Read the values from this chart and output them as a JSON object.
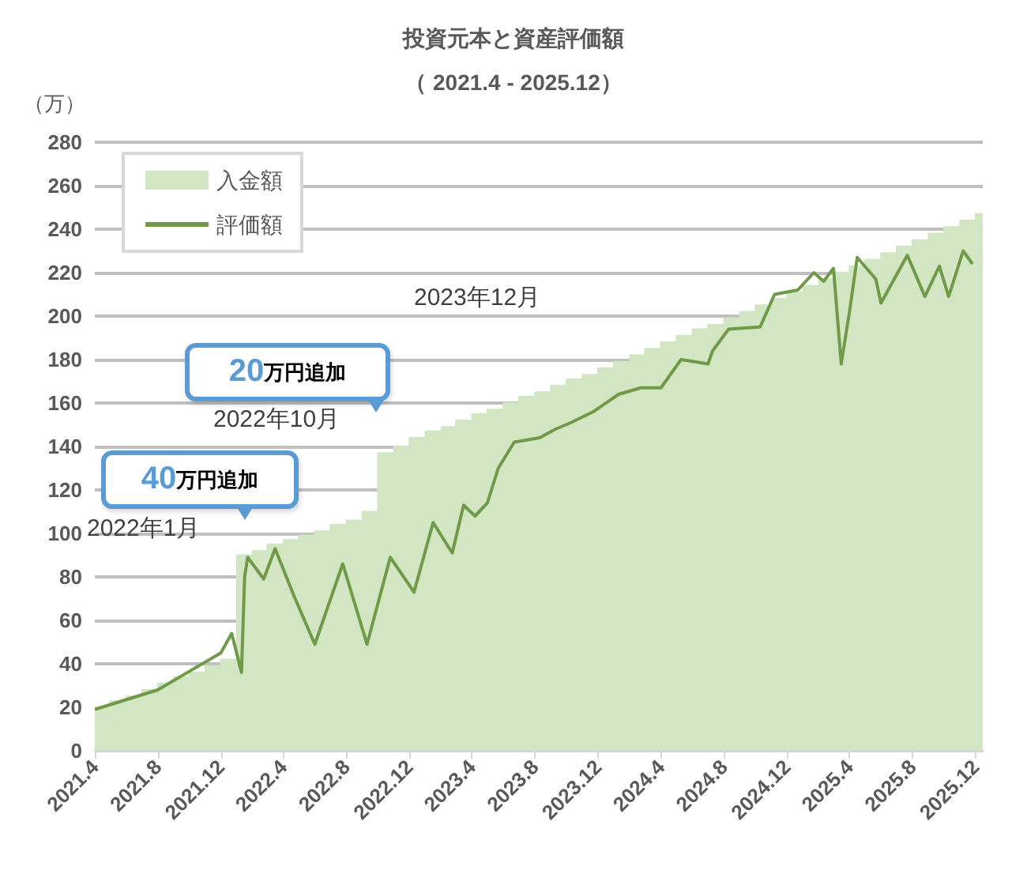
{
  "chart_data": {
    "type": "line",
    "title": "投資元本と資産評価額",
    "subtitle": "（ 2021.4 - 2025.12）",
    "ylabel": "（万）",
    "xlim": [
      "2021-04-01",
      "2025-12-15"
    ],
    "xticks": [
      {
        "value": "2021-04",
        "label": "2021.4"
      },
      {
        "value": "2021-08",
        "label": "2021.8"
      },
      {
        "value": "2021-12",
        "label": "2021.12"
      },
      {
        "value": "2022-04",
        "label": "2022.4"
      },
      {
        "value": "2022-08",
        "label": "2022.8"
      },
      {
        "value": "2022-12",
        "label": "2022.12"
      },
      {
        "value": "2023-04",
        "label": "2023.4"
      },
      {
        "value": "2023-08",
        "label": "2023.8"
      },
      {
        "value": "2023-12",
        "label": "2023.12"
      },
      {
        "value": "2024-04",
        "label": "2024.4"
      },
      {
        "value": "2024-08",
        "label": "2024.8"
      },
      {
        "value": "2024-12",
        "label": "2024.12"
      },
      {
        "value": "2025-04",
        "label": "2025.4"
      },
      {
        "value": "2025-08",
        "label": "2025.8"
      },
      {
        "value": "2025-12",
        "label": "2025.12"
      }
    ],
    "ylim": [
      0,
      280
    ],
    "yticks": [
      0,
      20,
      40,
      60,
      80,
      100,
      120,
      140,
      160,
      180,
      200,
      220,
      240,
      260,
      280
    ],
    "grid": "y",
    "legend": "top left",
    "marker": "none",
    "series": [
      {
        "name": "入金額",
        "type": "area",
        "color": "#d3e6c4",
        "x": [
          "2021-04",
          "2021-05",
          "2021-05",
          "2021-06",
          "2021-06",
          "2021-07",
          "2021-07",
          "2021-08",
          "2021-08",
          "2021-09",
          "2021-09",
          "2021-10",
          "2021-10",
          "2021-11",
          "2021-11",
          "2021-12",
          "2021-12",
          "2022-01",
          "2022-01",
          "2022-02",
          "2022-02",
          "2022-03",
          "2022-03",
          "2022-04",
          "2022-04",
          "2022-05",
          "2022-05",
          "2022-06",
          "2022-06",
          "2022-07",
          "2022-07",
          "2022-08",
          "2022-08",
          "2022-09",
          "2022-09",
          "2022-10",
          "2022-10",
          "2022-11",
          "2022-11",
          "2022-12",
          "2022-12",
          "2023-01",
          "2023-01",
          "2023-02",
          "2023-02",
          "2023-03",
          "2023-03",
          "2023-04",
          "2023-04",
          "2023-05",
          "2023-05",
          "2023-06",
          "2023-06",
          "2023-07",
          "2023-07",
          "2023-08",
          "2023-08",
          "2023-09",
          "2023-09",
          "2023-10",
          "2023-10",
          "2023-11",
          "2023-11",
          "2023-12",
          "2023-12",
          "2024-01",
          "2024-01",
          "2024-02",
          "2024-02",
          "2024-03",
          "2024-03",
          "2024-04",
          "2024-04",
          "2024-05",
          "2024-05",
          "2024-06",
          "2024-06",
          "2024-07",
          "2024-07",
          "2024-08",
          "2024-08",
          "2024-09",
          "2024-09",
          "2024-10",
          "2024-10",
          "2024-11",
          "2024-11",
          "2024-12",
          "2024-12",
          "2025-01",
          "2025-01",
          "2025-02",
          "2025-02",
          "2025-03",
          "2025-03",
          "2025-04",
          "2025-04",
          "2025-05",
          "2025-05",
          "2025-06",
          "2025-06",
          "2025-07",
          "2025-07",
          "2025-08",
          "2025-08",
          "2025-09",
          "2025-09",
          "2025-10",
          "2025-10",
          "2025-11",
          "2025-11",
          "2025-12",
          "2025-12",
          "2025-12-15"
        ],
        "values": [
          20,
          20,
          23,
          23,
          25,
          25,
          28,
          28,
          31,
          31,
          34,
          34,
          36,
          36,
          39,
          39,
          42,
          42,
          90,
          90,
          92,
          92,
          95,
          95,
          97,
          97,
          99,
          99,
          101,
          101,
          104,
          104,
          106,
          106,
          110,
          110,
          137,
          137,
          140,
          140,
          144,
          144,
          147,
          147,
          149,
          149,
          152,
          152,
          155,
          155,
          157,
          157,
          160,
          160,
          163,
          163,
          165,
          165,
          168,
          168,
          171,
          171,
          173,
          173,
          176,
          176,
          179,
          179,
          182,
          182,
          185,
          185,
          188,
          188,
          191,
          191,
          194,
          194,
          196,
          196,
          199,
          199,
          202,
          202,
          205,
          205,
          208,
          208,
          211,
          211,
          214,
          214,
          217,
          217,
          220,
          220,
          223,
          223,
          226,
          226,
          229,
          229,
          232,
          232,
          235,
          235,
          238,
          238,
          241,
          241,
          244,
          244,
          247,
          247
        ]
      },
      {
        "name": "評価額",
        "type": "line",
        "color": "#6f9a48",
        "x": [
          "2021-04-01",
          "2021-08-01",
          "2021-12-01",
          "2021-12-22",
          "2022-01-10",
          "2022-01-16",
          "2022-01-22",
          "2022-02-22",
          "2022-03-16",
          "2022-04-22",
          "2022-06-01",
          "2022-07-25",
          "2022-09-10",
          "2022-10-25",
          "2022-12-10",
          "2023-01-16",
          "2023-02-22",
          "2023-03-16",
          "2023-04-07",
          "2023-05-01",
          "2023-05-22",
          "2023-06-22",
          "2023-08-10",
          "2023-09-10",
          "2023-10-10",
          "2023-11-22",
          "2024-01-10",
          "2024-02-22",
          "2024-04-01",
          "2024-05-10",
          "2024-07-01",
          "2024-07-10",
          "2024-08-10",
          "2024-10-10",
          "2024-11-07",
          "2024-12-22",
          "2025-01-22",
          "2025-02-10",
          "2025-03-01",
          "2025-03-16",
          "2025-04-01",
          "2025-04-16",
          "2025-05-22",
          "2025-06-01",
          "2025-07-22",
          "2025-08-25",
          "2025-09-22",
          "2025-10-10",
          "2025-11-07",
          "2025-11-25"
        ],
        "values": [
          19,
          28,
          45,
          54,
          36,
          80,
          89,
          79,
          93,
          71,
          49,
          86,
          49,
          89,
          73,
          105,
          91,
          113,
          108,
          114,
          130,
          142,
          144,
          148,
          151,
          156,
          164,
          167,
          167,
          180,
          178,
          184,
          194,
          195,
          210,
          212,
          220,
          216,
          222,
          178,
          202,
          227,
          217,
          206,
          228,
          209,
          223,
          209,
          230,
          224
        ]
      }
    ],
    "annotations": [
      "40万円追加",
      "2022年1月",
      "20万円追加",
      "2022年10月",
      "2023年12月"
    ]
  }
}
